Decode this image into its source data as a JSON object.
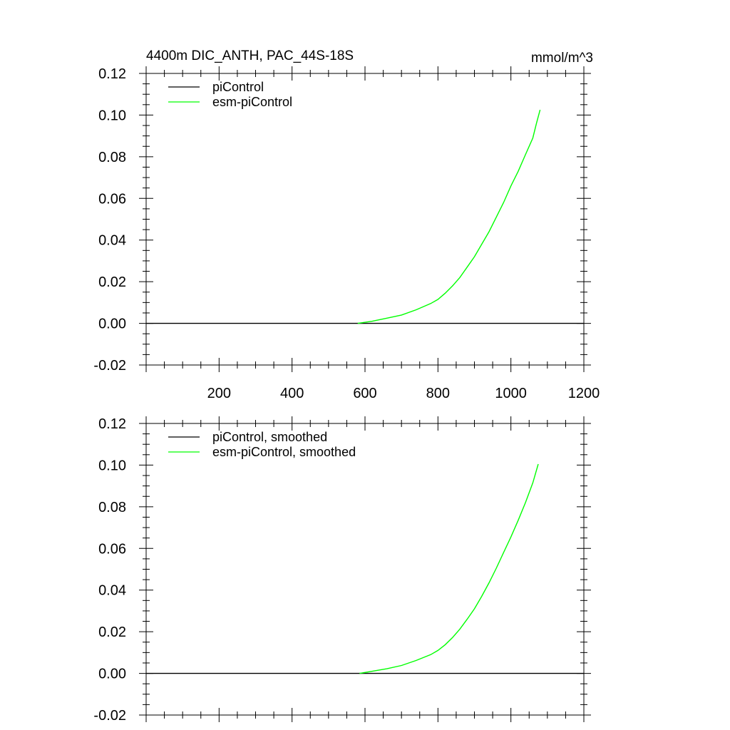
{
  "chart_data": [
    {
      "type": "line",
      "title": "4400m DIC_ANTH, PAC_44S-18S",
      "units": "mmol/m^3",
      "xlim": [
        0,
        1200
      ],
      "ylim": [
        -0.02,
        0.12
      ],
      "x_ticks": [
        200,
        400,
        600,
        800,
        1000,
        1200
      ],
      "y_ticks": [
        "0.12",
        "0.10",
        "0.08",
        "0.06",
        "0.04",
        "0.02",
        "0.00",
        "-0.02"
      ],
      "grid": false,
      "legend_position": "top-left",
      "series": [
        {
          "name": "piControl",
          "color": "#000000",
          "x": [
            0,
            1200
          ],
          "y": [
            0.0,
            0.0
          ]
        },
        {
          "name": "esm-piControl",
          "color": "#00ff00",
          "x": [
            580,
            620,
            660,
            700,
            740,
            780,
            800,
            820,
            840,
            860,
            880,
            900,
            920,
            940,
            960,
            980,
            1000,
            1020,
            1040,
            1060,
            1070,
            1080
          ],
          "y": [
            0.0,
            0.001,
            0.0025,
            0.004,
            0.0065,
            0.0095,
            0.0115,
            0.0145,
            0.018,
            0.022,
            0.027,
            0.032,
            0.038,
            0.044,
            0.051,
            0.058,
            0.066,
            0.073,
            0.081,
            0.089,
            0.096,
            0.1025
          ]
        }
      ]
    },
    {
      "type": "line",
      "title": "",
      "xlim": [
        0,
        1200
      ],
      "ylim": [
        -0.02,
        0.12
      ],
      "x_ticks": [
        200,
        400,
        600,
        800,
        1000,
        1200
      ],
      "y_ticks": [
        "0.12",
        "0.10",
        "0.08",
        "0.06",
        "0.04",
        "0.02",
        "0.00",
        "-0.02"
      ],
      "grid": false,
      "legend_position": "top-left",
      "series": [
        {
          "name": "piControl, smoothed",
          "color": "#000000",
          "x": [
            0,
            1200
          ],
          "y": [
            0.0,
            0.0
          ]
        },
        {
          "name": "esm-piControl, smoothed",
          "color": "#00ff00",
          "x": [
            585,
            620,
            660,
            700,
            740,
            780,
            800,
            820,
            840,
            860,
            880,
            900,
            920,
            940,
            960,
            980,
            1000,
            1020,
            1040,
            1060,
            1075
          ],
          "y": [
            0.0,
            0.001,
            0.0022,
            0.0038,
            0.0062,
            0.009,
            0.011,
            0.0138,
            0.0172,
            0.0212,
            0.026,
            0.031,
            0.037,
            0.0435,
            0.0505,
            0.058,
            0.0655,
            0.0735,
            0.082,
            0.0915,
            0.1005
          ]
        }
      ]
    }
  ]
}
